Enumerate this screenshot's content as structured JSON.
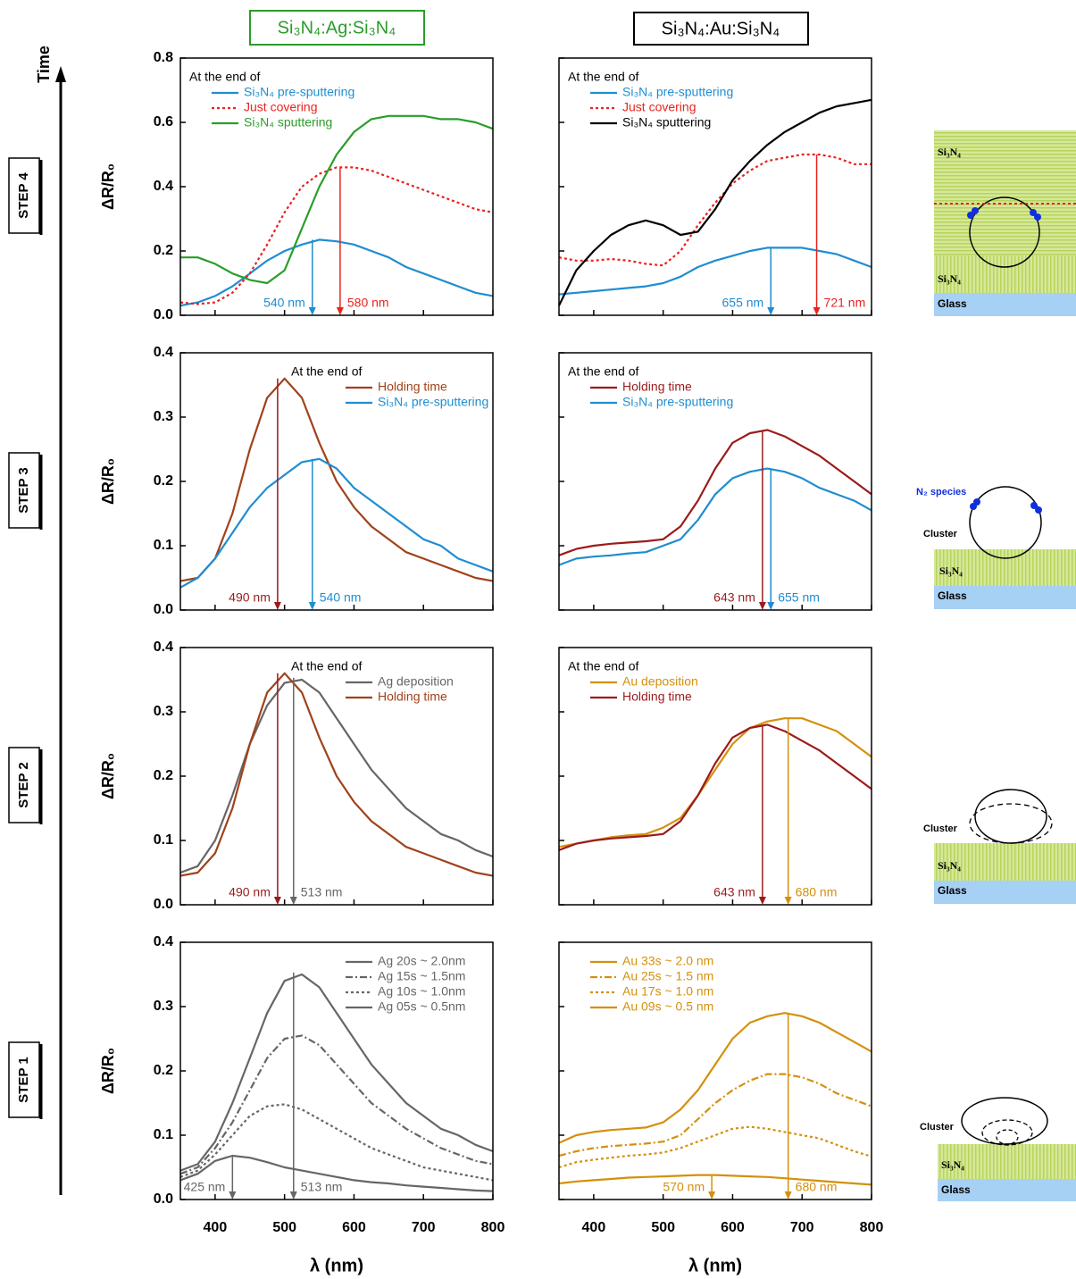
{
  "header": {
    "left": "Si₃N₄:Ag:Si₃N₄",
    "right": "Si₃N₄:Au:Si₃N₄",
    "time": "Time"
  },
  "steps": [
    "STEP 4",
    "STEP 3",
    "STEP 2",
    "STEP 1"
  ],
  "diagrams": {
    "si3n4": "Si₃N₄",
    "glass": "Glass",
    "n2": "N₂ species",
    "cluster": "Cluster"
  },
  "chart_data": [
    {
      "type": "line",
      "ylabel": "ΔR/R₀",
      "xlim": [
        350,
        800
      ],
      "ylim": [
        0,
        0.8
      ],
      "yticks": [
        {
          "value": 0,
          "label": "0.0"
        },
        0.2,
        0.4,
        0.6,
        0.8
      ],
      "legend": "upper left",
      "legend_title": "At the end of",
      "x": [
        350,
        375,
        400,
        425,
        450,
        475,
        500,
        525,
        550,
        575,
        600,
        625,
        650,
        675,
        700,
        725,
        750,
        775,
        800
      ],
      "series": [
        {
          "name": "Si₃N₄ pre-sputtering",
          "color": "#1f8dd0",
          "style": "solid",
          "values": [
            0.03,
            0.04,
            0.06,
            0.09,
            0.13,
            0.17,
            0.2,
            0.22,
            0.235,
            0.23,
            0.22,
            0.2,
            0.18,
            0.15,
            0.13,
            0.11,
            0.09,
            0.07,
            0.06
          ]
        },
        {
          "name": "Just covering",
          "color": "#e8231f",
          "style": "dotted",
          "values": [
            0.04,
            0.035,
            0.04,
            0.07,
            0.13,
            0.22,
            0.32,
            0.4,
            0.44,
            0.46,
            0.46,
            0.45,
            0.43,
            0.41,
            0.39,
            0.37,
            0.35,
            0.33,
            0.32
          ]
        },
        {
          "name": "Si₃N₄ sputtering",
          "color": "#2a9d2a",
          "style": "solid",
          "values": [
            0.18,
            0.18,
            0.16,
            0.13,
            0.11,
            0.1,
            0.14,
            0.27,
            0.4,
            0.5,
            0.57,
            0.61,
            0.62,
            0.62,
            0.62,
            0.61,
            0.61,
            0.6,
            0.58
          ]
        }
      ],
      "annotations": [
        {
          "x": 540,
          "y": 0.235,
          "label": "540 nm",
          "color": "#1f8dd0"
        },
        {
          "x": 580,
          "y": 0.46,
          "label": "580 nm",
          "color": "#e8231f"
        }
      ]
    },
    {
      "type": "line",
      "xlim": [
        350,
        800
      ],
      "ylim": [
        0,
        0.8
      ],
      "legend": "upper left",
      "legend_title": "At the end of",
      "x": [
        350,
        375,
        400,
        425,
        450,
        475,
        500,
        525,
        550,
        575,
        600,
        625,
        650,
        675,
        700,
        725,
        750,
        775,
        800
      ],
      "series": [
        {
          "name": "Si₃N₄ pre-sputtering",
          "color": "#1f8dd0",
          "style": "solid",
          "values": [
            0.065,
            0.07,
            0.075,
            0.08,
            0.085,
            0.09,
            0.1,
            0.12,
            0.15,
            0.17,
            0.185,
            0.2,
            0.21,
            0.21,
            0.21,
            0.2,
            0.19,
            0.17,
            0.15
          ]
        },
        {
          "name": "Just covering",
          "color": "#e8231f",
          "style": "dotted",
          "values": [
            0.18,
            0.17,
            0.17,
            0.175,
            0.17,
            0.16,
            0.155,
            0.2,
            0.28,
            0.35,
            0.41,
            0.45,
            0.48,
            0.49,
            0.5,
            0.5,
            0.49,
            0.47,
            0.47
          ]
        },
        {
          "name": "Si₃N₄ sputtering",
          "color": "#000000",
          "style": "solid",
          "values": [
            0.03,
            0.14,
            0.2,
            0.25,
            0.28,
            0.295,
            0.28,
            0.25,
            0.26,
            0.33,
            0.42,
            0.48,
            0.53,
            0.57,
            0.6,
            0.63,
            0.65,
            0.66,
            0.67
          ]
        }
      ],
      "annotations": [
        {
          "x": 655,
          "y": 0.21,
          "label": "655 nm",
          "color": "#1f8dd0"
        },
        {
          "x": 721,
          "y": 0.5,
          "label": "721 nm",
          "color": "#e8231f"
        }
      ]
    },
    {
      "type": "line",
      "ylabel": "ΔR/R₀",
      "xlim": [
        350,
        800
      ],
      "ylim": [
        0,
        0.4
      ],
      "yticks": [
        {
          "value": 0,
          "label": "0.0"
        },
        0.1,
        0.2,
        0.3,
        0.4
      ],
      "legend": "upper right",
      "legend_title": "At the end of",
      "x": [
        350,
        375,
        400,
        425,
        450,
        475,
        500,
        525,
        550,
        575,
        600,
        625,
        650,
        675,
        700,
        725,
        750,
        775,
        800
      ],
      "series": [
        {
          "name": "Holding time",
          "color": "#a0421a",
          "style": "solid",
          "values": [
            0.045,
            0.05,
            0.08,
            0.15,
            0.25,
            0.33,
            0.36,
            0.33,
            0.26,
            0.2,
            0.16,
            0.13,
            0.11,
            0.09,
            0.08,
            0.07,
            0.06,
            0.05,
            0.045
          ]
        },
        {
          "name": "Si₃N₄ pre-sputtering",
          "color": "#1f8dd0",
          "style": "solid",
          "values": [
            0.035,
            0.05,
            0.08,
            0.12,
            0.16,
            0.19,
            0.21,
            0.23,
            0.235,
            0.22,
            0.19,
            0.17,
            0.15,
            0.13,
            0.11,
            0.1,
            0.08,
            0.07,
            0.06
          ]
        }
      ],
      "annotations": [
        {
          "x": 490,
          "y": 0.36,
          "label": "490 nm",
          "color": "#9b1b1b"
        },
        {
          "x": 540,
          "y": 0.235,
          "label": "540 nm",
          "color": "#1f8dd0"
        }
      ]
    },
    {
      "type": "line",
      "xlim": [
        350,
        800
      ],
      "ylim": [
        0,
        0.4
      ],
      "legend": "upper left",
      "legend_title": "At the end of",
      "x": [
        350,
        375,
        400,
        425,
        450,
        475,
        500,
        525,
        550,
        575,
        600,
        625,
        650,
        675,
        700,
        725,
        750,
        775,
        800
      ],
      "series": [
        {
          "name": "Holding time",
          "color": "#9b1b1b",
          "style": "solid",
          "values": [
            0.085,
            0.095,
            0.1,
            0.103,
            0.105,
            0.107,
            0.11,
            0.13,
            0.17,
            0.22,
            0.26,
            0.275,
            0.28,
            0.27,
            0.255,
            0.24,
            0.22,
            0.2,
            0.18
          ]
        },
        {
          "name": "Si₃N₄ pre-sputtering",
          "color": "#1f8dd0",
          "style": "solid",
          "values": [
            0.07,
            0.08,
            0.083,
            0.085,
            0.088,
            0.09,
            0.1,
            0.11,
            0.14,
            0.18,
            0.205,
            0.215,
            0.22,
            0.215,
            0.205,
            0.19,
            0.18,
            0.17,
            0.155
          ]
        }
      ],
      "annotations": [
        {
          "x": 643,
          "y": 0.28,
          "label": "643 nm",
          "color": "#9b1b1b"
        },
        {
          "x": 655,
          "y": 0.22,
          "label": "655 nm",
          "color": "#1f8dd0"
        }
      ]
    },
    {
      "type": "line",
      "ylabel": "ΔR/R₀",
      "xlim": [
        350,
        800
      ],
      "ylim": [
        0,
        0.4
      ],
      "yticks": [
        {
          "value": 0,
          "label": "0.0"
        },
        0.1,
        0.2,
        0.3,
        0.4
      ],
      "legend": "upper right",
      "legend_title": "At the end of",
      "x": [
        350,
        375,
        400,
        425,
        450,
        475,
        500,
        525,
        550,
        575,
        600,
        625,
        650,
        675,
        700,
        725,
        750,
        775,
        800
      ],
      "series": [
        {
          "name": "Ag deposition",
          "color": "#666666",
          "style": "solid",
          "values": [
            0.05,
            0.06,
            0.1,
            0.17,
            0.25,
            0.31,
            0.345,
            0.35,
            0.33,
            0.29,
            0.25,
            0.21,
            0.18,
            0.15,
            0.13,
            0.11,
            0.1,
            0.085,
            0.075
          ]
        },
        {
          "name": "Holding time",
          "color": "#a0421a",
          "style": "solid",
          "values": [
            0.045,
            0.05,
            0.08,
            0.15,
            0.25,
            0.33,
            0.36,
            0.33,
            0.26,
            0.2,
            0.16,
            0.13,
            0.11,
            0.09,
            0.08,
            0.07,
            0.06,
            0.05,
            0.045
          ]
        }
      ],
      "annotations": [
        {
          "x": 490,
          "y": 0.36,
          "label": "490 nm",
          "color": "#9b1b1b"
        },
        {
          "x": 513,
          "y": 0.353,
          "label": "513 nm",
          "color": "#666666"
        }
      ]
    },
    {
      "type": "line",
      "xlim": [
        350,
        800
      ],
      "ylim": [
        0,
        0.4
      ],
      "legend": "upper left",
      "legend_title": "At the end of",
      "x": [
        350,
        375,
        400,
        425,
        450,
        475,
        500,
        525,
        550,
        575,
        600,
        625,
        650,
        675,
        700,
        725,
        750,
        775,
        800
      ],
      "series": [
        {
          "name": "Au deposition",
          "color": "#d4900c",
          "style": "solid",
          "values": [
            0.09,
            0.095,
            0.1,
            0.105,
            0.108,
            0.11,
            0.12,
            0.135,
            0.17,
            0.21,
            0.25,
            0.275,
            0.285,
            0.29,
            0.29,
            0.28,
            0.27,
            0.25,
            0.23
          ]
        },
        {
          "name": "Holding time",
          "color": "#9b1b1b",
          "style": "solid",
          "values": [
            0.085,
            0.095,
            0.1,
            0.103,
            0.105,
            0.107,
            0.11,
            0.13,
            0.17,
            0.22,
            0.26,
            0.275,
            0.28,
            0.27,
            0.255,
            0.24,
            0.22,
            0.2,
            0.18
          ]
        }
      ],
      "annotations": [
        {
          "x": 643,
          "y": 0.28,
          "label": "643 nm",
          "color": "#9b1b1b"
        },
        {
          "x": 680,
          "y": 0.29,
          "label": "680 nm",
          "color": "#d4900c"
        }
      ]
    },
    {
      "type": "line",
      "ylabel": "ΔR/R₀",
      "xlabel": "λ (nm)",
      "xlim": [
        350,
        800
      ],
      "xticks": [
        400,
        500,
        600,
        700,
        800
      ],
      "ylim": [
        0,
        0.4
      ],
      "yticks": [
        {
          "value": 0,
          "label": "0.0"
        },
        0.1,
        0.2,
        0.3,
        0.4
      ],
      "legend": "upper right",
      "x": [
        350,
        375,
        400,
        425,
        450,
        475,
        500,
        525,
        550,
        575,
        600,
        625,
        650,
        675,
        700,
        725,
        750,
        775,
        800
      ],
      "series": [
        {
          "name": "Ag 20s ~ 2.0nm",
          "color": "#666666",
          "style": "solid",
          "values": [
            0.045,
            0.055,
            0.09,
            0.15,
            0.22,
            0.29,
            0.34,
            0.35,
            0.33,
            0.29,
            0.25,
            0.21,
            0.18,
            0.15,
            0.13,
            0.11,
            0.1,
            0.085,
            0.075
          ]
        },
        {
          "name": "Ag 15s ~ 1.5nm",
          "color": "#666666",
          "style": "dashdot",
          "values": [
            0.04,
            0.05,
            0.08,
            0.12,
            0.17,
            0.22,
            0.25,
            0.255,
            0.24,
            0.21,
            0.18,
            0.15,
            0.13,
            0.11,
            0.095,
            0.08,
            0.07,
            0.06,
            0.055
          ]
        },
        {
          "name": "Ag 10s ~ 1.0nm",
          "color": "#666666",
          "style": "dotted",
          "values": [
            0.035,
            0.045,
            0.07,
            0.1,
            0.13,
            0.145,
            0.148,
            0.14,
            0.125,
            0.11,
            0.095,
            0.08,
            0.07,
            0.06,
            0.05,
            0.045,
            0.04,
            0.035,
            0.03
          ]
        },
        {
          "name": "Ag 05s ~ 0.5nm",
          "color": "#666666",
          "style": "solid",
          "values": [
            0.03,
            0.04,
            0.06,
            0.068,
            0.065,
            0.058,
            0.05,
            0.045,
            0.04,
            0.035,
            0.03,
            0.027,
            0.025,
            0.022,
            0.02,
            0.018,
            0.016,
            0.014,
            0.013
          ]
        }
      ],
      "annotations": [
        {
          "x": 425,
          "y": 0.068,
          "label": "425 nm",
          "color": "#666666"
        },
        {
          "x": 513,
          "y": 0.353,
          "label": "513 nm",
          "color": "#666666"
        }
      ]
    },
    {
      "type": "line",
      "xlabel": "λ (nm)",
      "xlim": [
        350,
        800
      ],
      "xticks": [
        400,
        500,
        600,
        700,
        800
      ],
      "ylim": [
        0,
        0.4
      ],
      "legend": "upper left",
      "x": [
        350,
        375,
        400,
        425,
        450,
        475,
        500,
        525,
        550,
        575,
        600,
        625,
        650,
        675,
        700,
        725,
        750,
        775,
        800
      ],
      "series": [
        {
          "name": "Au 33s ~ 2.0 nm",
          "color": "#d4900c",
          "style": "solid",
          "values": [
            0.088,
            0.1,
            0.105,
            0.108,
            0.11,
            0.112,
            0.12,
            0.14,
            0.17,
            0.21,
            0.25,
            0.275,
            0.285,
            0.29,
            0.285,
            0.275,
            0.26,
            0.245,
            0.23
          ]
        },
        {
          "name": "Au 25s ~ 1.5 nm",
          "color": "#d4900c",
          "style": "dashdot",
          "values": [
            0.068,
            0.075,
            0.08,
            0.083,
            0.085,
            0.087,
            0.09,
            0.1,
            0.125,
            0.15,
            0.17,
            0.185,
            0.195,
            0.195,
            0.19,
            0.18,
            0.165,
            0.155,
            0.145
          ]
        },
        {
          "name": "Au 17s ~ 1.0 nm",
          "color": "#d4900c",
          "style": "dotted",
          "values": [
            0.05,
            0.058,
            0.062,
            0.065,
            0.068,
            0.07,
            0.073,
            0.08,
            0.09,
            0.1,
            0.11,
            0.113,
            0.11,
            0.105,
            0.1,
            0.095,
            0.085,
            0.075,
            0.067
          ]
        },
        {
          "name": "Au 09s ~ 0.5 nm",
          "color": "#d4900c",
          "style": "solid",
          "values": [
            0.025,
            0.028,
            0.03,
            0.032,
            0.034,
            0.035,
            0.036,
            0.037,
            0.038,
            0.038,
            0.037,
            0.036,
            0.035,
            0.033,
            0.031,
            0.029,
            0.027,
            0.025,
            0.023
          ]
        }
      ],
      "annotations": [
        {
          "x": 570,
          "y": 0.038,
          "label": "570 nm",
          "color": "#d4900c"
        },
        {
          "x": 680,
          "y": 0.29,
          "label": "680 nm",
          "color": "#d4900c"
        }
      ]
    }
  ]
}
